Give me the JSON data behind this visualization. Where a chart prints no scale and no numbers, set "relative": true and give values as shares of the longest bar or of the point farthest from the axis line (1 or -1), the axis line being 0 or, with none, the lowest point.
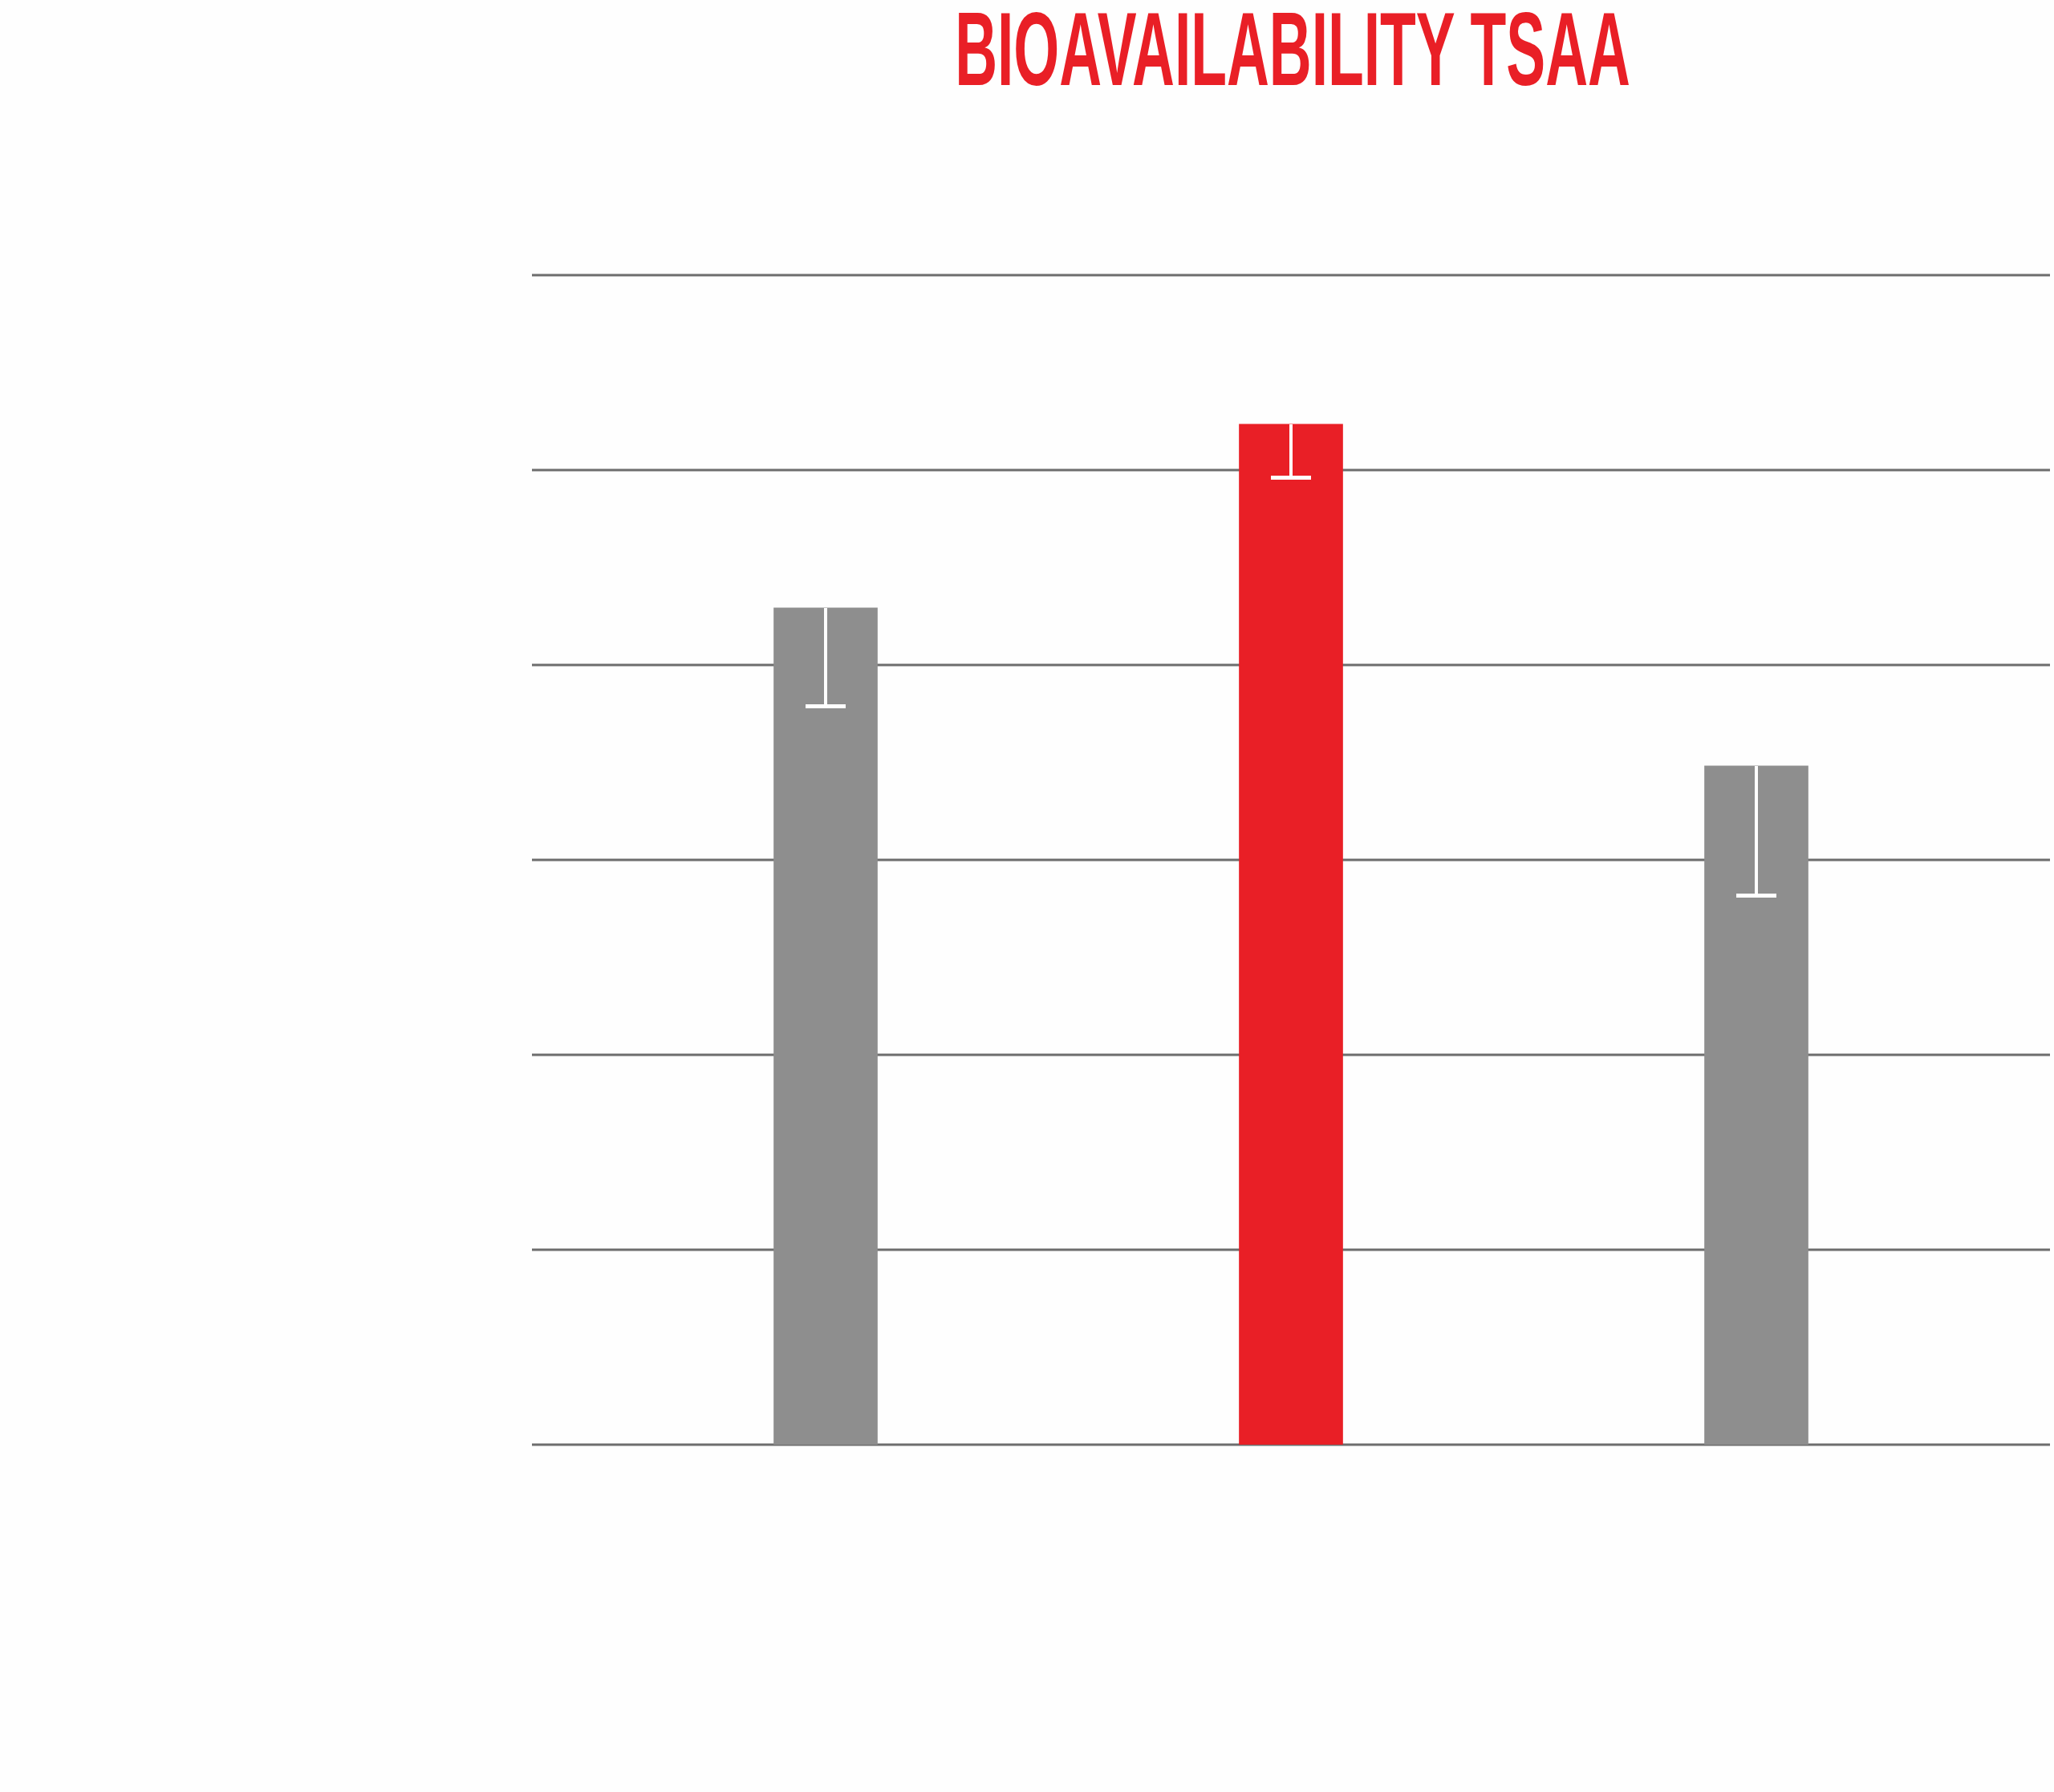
{
  "chart_data": {
    "type": "bar",
    "title": "BIOAVAILABILITY TSAA",
    "categories": [
      null,
      null,
      null
    ],
    "values": [
      0.82,
      1,
      0.665
    ],
    "colors": [
      "#8e8e8e",
      "#e91f26",
      "#8e8e8e"
    ],
    "relative": true,
    "ref_lines": [
      {
        "axis": "y",
        "value": 0.191,
        "color": "#6d6d6d"
      },
      {
        "axis": "y",
        "value": 0.382,
        "color": "#6d6d6d"
      },
      {
        "axis": "y",
        "value": 0.573,
        "color": "#6d6d6d"
      },
      {
        "axis": "y",
        "value": 0.764,
        "color": "#6d6d6d"
      },
      {
        "axis": "y",
        "value": 0.955,
        "color": "#6d6d6d"
      },
      {
        "axis": "y",
        "value": 1.146,
        "color": "#6d6d6d"
      }
    ],
    "tick_labels": false
  }
}
